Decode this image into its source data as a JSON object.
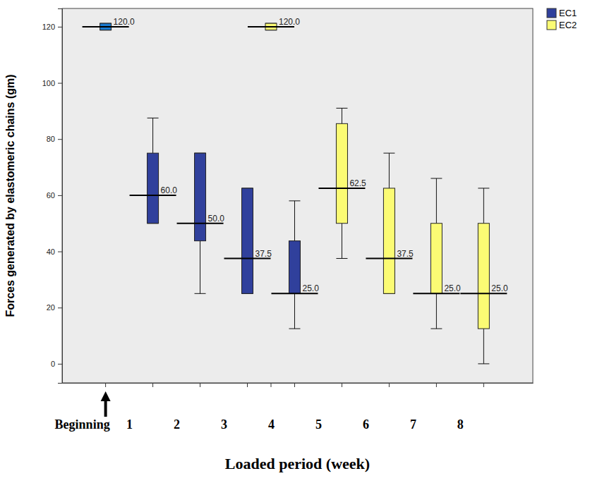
{
  "chart_data": {
    "type": "box",
    "y_label": "Forces generated by elastomeric chains (gm)",
    "x_label": "Loaded period (week)",
    "xlim": [
      -0.42,
      9.54
    ],
    "xticks": [
      {
        "value": 0,
        "label": "Beginning"
      },
      1,
      2,
      3,
      4,
      5,
      6,
      7,
      8
    ],
    "ylim": [
      -6.8,
      126.5
    ],
    "yticks": [
      0,
      20,
      40,
      60,
      80,
      100,
      120
    ],
    "grid": false,
    "legend": "top-right",
    "data_labels": true,
    "series": [
      {
        "name": "EC1",
        "color": "#30409c",
        "colors": [
          "#1b7bd0",
          "#30409c",
          "#30409c",
          "#30409c",
          "#30409c"
        ],
        "x": [
          0.5,
          1.5,
          2.5,
          3.5,
          4.5
        ],
        "min": [
          118.8,
          50,
          25,
          25,
          12.5
        ],
        "q1": [
          118.8,
          50,
          43.75,
          25,
          25
        ],
        "median": [
          120,
          60,
          50,
          37.5,
          25
        ],
        "q3": [
          121.2,
          75,
          75,
          62.5,
          43.75
        ],
        "max": [
          121.2,
          87.5,
          75,
          62.5,
          58
        ],
        "median_labels": [
          "120.0",
          "60.0",
          "50.0",
          "37.5",
          "25.0"
        ]
      },
      {
        "name": "EC2",
        "color": "#fbfb74",
        "x": [
          4,
          5.5,
          6.5,
          7.5,
          8.5
        ],
        "min": [
          118.8,
          37.5,
          25,
          12.5,
          0
        ],
        "q1": [
          118.8,
          50,
          25,
          25,
          12.5
        ],
        "median": [
          120,
          62.5,
          37.5,
          25,
          25
        ],
        "q3": [
          121.2,
          85.5,
          62.5,
          50,
          50
        ],
        "max": [
          121.2,
          91,
          75,
          66,
          62.5
        ],
        "median_labels": [
          "120.0",
          "62.5",
          "37.5",
          "25.0",
          "25.0"
        ]
      }
    ]
  }
}
